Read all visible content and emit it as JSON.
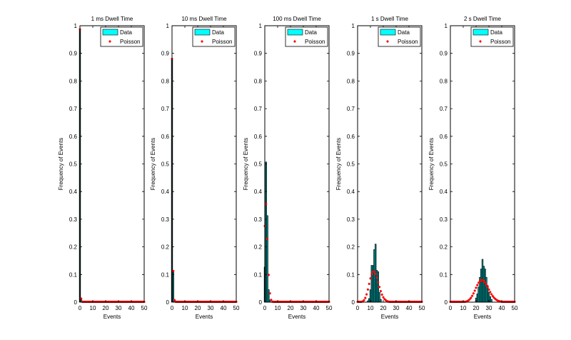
{
  "chart_data": [
    {
      "type": "bar",
      "title": "1 ms Dwell Time",
      "xlabel": "Events",
      "ylabel": "Frequency of Events",
      "xlim": [
        0,
        50
      ],
      "ylim": [
        0,
        1
      ],
      "xticks": [
        0,
        10,
        20,
        30,
        40,
        50
      ],
      "yticks": [
        0,
        0.1,
        0.2,
        0.3,
        0.4,
        0.5,
        0.6,
        0.7,
        0.8,
        0.9,
        1
      ],
      "legend": {
        "position": "top-right",
        "entries": [
          "Data",
          "Poisson"
        ]
      },
      "data": {
        "x": [
          0,
          1
        ],
        "values": [
          0.987,
          0.013
        ]
      },
      "poisson_mean": 0.013
    },
    {
      "type": "bar",
      "title": "10 ms Dwell Time",
      "xlabel": "Events",
      "ylabel": "Frequency of Events",
      "xlim": [
        0,
        50
      ],
      "ylim": [
        0,
        1
      ],
      "xticks": [
        0,
        10,
        20,
        30,
        40,
        50
      ],
      "yticks": [
        0,
        0.1,
        0.2,
        0.3,
        0.4,
        0.5,
        0.6,
        0.7,
        0.8,
        0.9,
        1
      ],
      "legend": {
        "position": "top-right",
        "entries": [
          "Data",
          "Poisson"
        ]
      },
      "data": {
        "x": [
          0,
          1,
          2
        ],
        "values": [
          0.88,
          0.115,
          0.005
        ]
      },
      "poisson_mean": 0.128
    },
    {
      "type": "bar",
      "title": "100 ms Dwell Time",
      "xlabel": "Events",
      "ylabel": "Frequency of Events",
      "xlim": [
        0,
        50
      ],
      "ylim": [
        0,
        1
      ],
      "xticks": [
        0,
        10,
        20,
        30,
        40,
        50
      ],
      "yticks": [
        0,
        0.1,
        0.2,
        0.3,
        0.4,
        0.5,
        0.6,
        0.7,
        0.8,
        0.9,
        1
      ],
      "legend": {
        "position": "top-right",
        "entries": [
          "Data",
          "Poisson"
        ]
      },
      "data": {
        "x": [
          0,
          1,
          2,
          3,
          4
        ],
        "values": [
          0.127,
          0.507,
          0.313,
          0.045,
          0.008
        ]
      },
      "poisson_mean": 1.29
    },
    {
      "type": "bar",
      "title": "1 s Dwell Time",
      "xlabel": "Events",
      "ylabel": "Frequency of Events",
      "xlim": [
        0,
        50
      ],
      "ylim": [
        0,
        1
      ],
      "xticks": [
        0,
        10,
        20,
        30,
        40,
        50
      ],
      "yticks": [
        0,
        0.1,
        0.2,
        0.3,
        0.4,
        0.5,
        0.6,
        0.7,
        0.8,
        0.9,
        1
      ],
      "legend": {
        "position": "top-right",
        "entries": [
          "Data",
          "Poisson"
        ]
      },
      "data": {
        "x": [
          8,
          9,
          10,
          11,
          12,
          13,
          14,
          15,
          16,
          17,
          18
        ],
        "values": [
          0.005,
          0.013,
          0.045,
          0.133,
          0.133,
          0.19,
          0.21,
          0.115,
          0.11,
          0.035,
          0.01
        ]
      },
      "poisson_mean": 13
    },
    {
      "type": "bar",
      "title": "2 s Dwell Time",
      "xlabel": "Events",
      "ylabel": "Frequency of Events",
      "xlim": [
        0,
        50
      ],
      "ylim": [
        0,
        1
      ],
      "xticks": [
        0,
        10,
        20,
        30,
        40,
        50
      ],
      "yticks": [
        0,
        0.1,
        0.2,
        0.3,
        0.4,
        0.5,
        0.6,
        0.7,
        0.8,
        0.9,
        1
      ],
      "legend": {
        "position": "top-right",
        "entries": [
          "Data",
          "Poisson"
        ]
      },
      "data": {
        "x": [
          20,
          21,
          22,
          23,
          24,
          25,
          26,
          27,
          28,
          29,
          30,
          31,
          32
        ],
        "values": [
          0.015,
          0.03,
          0.055,
          0.09,
          0.12,
          0.155,
          0.13,
          0.12,
          0.09,
          0.06,
          0.035,
          0.02,
          0.01
        ]
      },
      "poisson_mean": 25
    }
  ],
  "colors": {
    "bar_fill": "#008b8b",
    "bar_edge": "#000000",
    "legend_patch": "#00ffff",
    "poisson_marker": "#ff0000"
  }
}
